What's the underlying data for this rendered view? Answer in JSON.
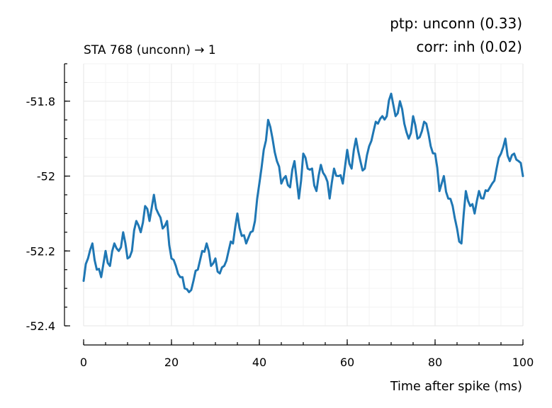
{
  "chart_data": {
    "type": "line",
    "title": "STA 768 (unconn) → 1",
    "annotations": [
      "ptp:  unconn (0.33)",
      "corr: inh (0.02)"
    ],
    "xlabel": "Time after spike (ms)",
    "ylabel": "",
    "xlim": [
      0,
      100
    ],
    "ylim": [
      -52.4,
      -51.7
    ],
    "xticks": [
      0,
      20,
      40,
      60,
      80,
      100
    ],
    "xtick_labels": [
      "0",
      "20",
      "40",
      "60",
      "80",
      "100"
    ],
    "yticks": [
      -52.4,
      -52.2,
      -52.0,
      -51.8
    ],
    "ytick_labels": [
      "-52.4",
      "-52.2",
      "-52",
      "-51.8"
    ],
    "grid": true,
    "color": "#1f77b4",
    "series": [
      {
        "x": [
          0,
          1,
          2,
          3,
          4,
          5,
          6,
          7,
          8,
          9,
          10,
          11,
          12,
          13,
          14,
          15,
          16,
          17,
          18,
          19,
          20,
          21,
          22,
          23,
          24,
          25,
          26,
          27,
          28,
          29,
          30,
          31,
          32,
          33,
          34,
          35,
          36,
          37,
          38,
          39,
          40,
          41,
          42,
          43,
          44,
          45,
          46,
          47,
          48,
          49,
          50,
          51,
          52,
          53,
          54,
          55,
          56,
          57,
          58,
          59,
          60,
          61,
          62,
          63,
          64,
          65,
          66,
          67,
          68,
          69,
          70,
          71,
          72,
          73,
          74,
          75,
          76,
          77,
          78,
          79,
          80,
          81,
          82,
          83,
          84,
          85,
          86,
          87,
          88,
          89,
          90,
          91,
          92,
          93,
          94,
          95,
          96,
          97,
          98,
          99,
          100
        ],
        "values": [
          -52.28,
          -52.22,
          -52.18,
          -52.25,
          -52.27,
          -52.2,
          -52.24,
          -52.18,
          -52.2,
          -52.15,
          -52.22,
          -52.2,
          -52.12,
          -52.15,
          -52.08,
          -52.12,
          -52.05,
          -52.1,
          -52.14,
          -52.12,
          -52.22,
          -52.24,
          -52.27,
          -52.3,
          -52.31,
          -52.28,
          -52.25,
          -52.2,
          -52.18,
          -52.24,
          -52.22,
          -52.26,
          -52.24,
          -52.2,
          -52.18,
          -52.1,
          -52.16,
          -52.18,
          -52.15,
          -52.12,
          -52.02,
          -51.93,
          -51.85,
          -51.9,
          -51.96,
          -52.02,
          -52.0,
          -52.03,
          -51.96,
          -52.06,
          -51.94,
          -51.98,
          -51.98,
          -52.04,
          -51.97,
          -52.0,
          -52.06,
          -51.98,
          -52.0,
          -52.02,
          -51.93,
          -51.98,
          -51.9,
          -51.96,
          -51.98,
          -51.92,
          -51.88,
          -51.86,
          -51.84,
          -51.84,
          -51.78,
          -51.84,
          -51.8,
          -51.86,
          -51.9,
          -51.84,
          -51.9,
          -51.88,
          -51.86,
          -51.92,
          -51.94,
          -52.04,
          -52.0,
          -52.06,
          -52.08,
          -52.14,
          -52.18,
          -52.04,
          -52.08,
          -52.1,
          -52.04,
          -52.06,
          -52.04,
          -52.02,
          -51.98,
          -51.94,
          -51.9,
          -51.96,
          -51.94,
          -51.96,
          -52.0
        ]
      }
    ]
  }
}
